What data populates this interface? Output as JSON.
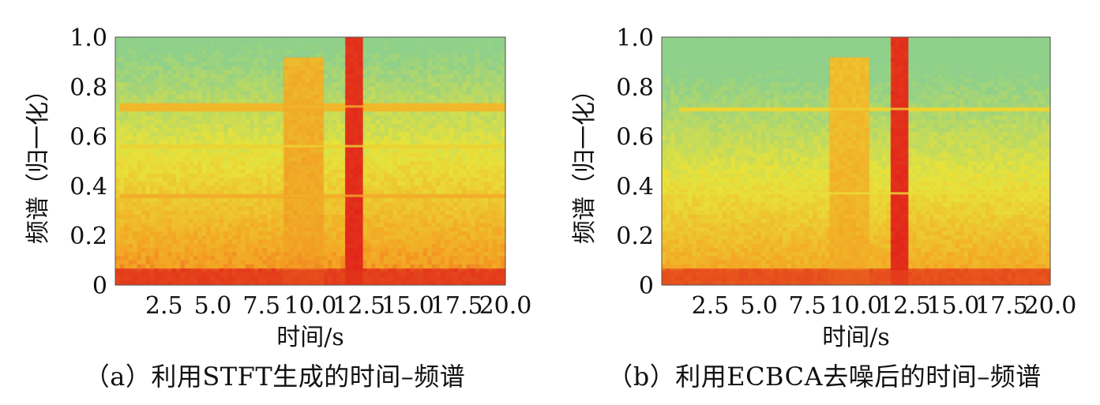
{
  "chart_data": [
    {
      "type": "heatmap",
      "caption": "（a）利用STFT生成的时间–频谱",
      "xlabel": "时间/s",
      "ylabel": "频谱（归一化）",
      "xticks": [
        "2.5",
        "5.0",
        "7.5",
        "10.0",
        "12.5",
        "15.0",
        "17.5",
        "20.0"
      ],
      "xtick_values": [
        2.5,
        5.0,
        7.5,
        10.0,
        12.5,
        15.0,
        17.5,
        20.0
      ],
      "yticks": [
        "0",
        "0.2",
        "0.4",
        "0.6",
        "0.8",
        "1.0"
      ],
      "ytick_values": [
        0,
        0.2,
        0.4,
        0.6,
        0.8,
        1.0
      ],
      "xlim": [
        0,
        20.0
      ],
      "ylim": [
        0,
        1.0
      ],
      "colormap": [
        "#e0251a",
        "#f4a223",
        "#e8e23a",
        "#8fd08a"
      ],
      "regions": [
        {
          "kind": "band",
          "t0": 8.6,
          "t1": 10.7,
          "f0": 0,
          "f1": 0.92,
          "intensity": 0.7
        },
        {
          "kind": "band",
          "t0": 11.8,
          "t1": 12.7,
          "f0": 0,
          "f1": 1.0,
          "intensity": 1.0
        },
        {
          "kind": "line",
          "t0": 0.3,
          "t1": 20.0,
          "f": 0.72,
          "intensity": 0.55
        },
        {
          "kind": "line",
          "t0": 0.3,
          "t1": 20.0,
          "f": 0.36,
          "intensity": 0.6
        },
        {
          "kind": "line",
          "t0": 0.3,
          "t1": 20.0,
          "f": 0.56,
          "intensity": 0.4
        },
        {
          "kind": "floor",
          "t0": 0,
          "t1": 20.0,
          "f0": 0,
          "f1": 0.06,
          "intensity": 0.95
        }
      ]
    },
    {
      "type": "heatmap",
      "caption": "（b）利用ECBCA去噪后的时间–频谱",
      "xlabel": "时间/s",
      "ylabel": "频谱（归一化）",
      "xticks": [
        "2.5",
        "5.0",
        "7.5",
        "10.0",
        "12.5",
        "15.0",
        "17.5",
        "20.0"
      ],
      "xtick_values": [
        2.5,
        5.0,
        7.5,
        10.0,
        12.5,
        15.0,
        17.5,
        20.0
      ],
      "yticks": [
        "0",
        "0.2",
        "0.4",
        "0.6",
        "0.8",
        "1.0"
      ],
      "ytick_values": [
        0,
        0.2,
        0.4,
        0.6,
        0.8,
        1.0
      ],
      "xlim": [
        0,
        20.0
      ],
      "ylim": [
        0,
        1.0
      ],
      "colormap": [
        "#e0251a",
        "#f4a223",
        "#e8e23a",
        "#8fd08a"
      ],
      "regions": [
        {
          "kind": "band",
          "t0": 8.6,
          "t1": 10.7,
          "f0": 0,
          "f1": 0.92,
          "intensity": 0.65
        },
        {
          "kind": "band",
          "t0": 11.8,
          "t1": 12.7,
          "f0": 0,
          "f1": 1.0,
          "intensity": 1.0
        },
        {
          "kind": "line",
          "t0": 1.0,
          "t1": 20.0,
          "f": 0.71,
          "intensity": 0.4
        },
        {
          "kind": "line",
          "t0": 0.3,
          "t1": 20.0,
          "f": 0.37,
          "intensity": 0.35
        },
        {
          "kind": "floor",
          "t0": 0,
          "t1": 20.0,
          "f0": 0,
          "f1": 0.06,
          "intensity": 0.9
        }
      ]
    }
  ]
}
